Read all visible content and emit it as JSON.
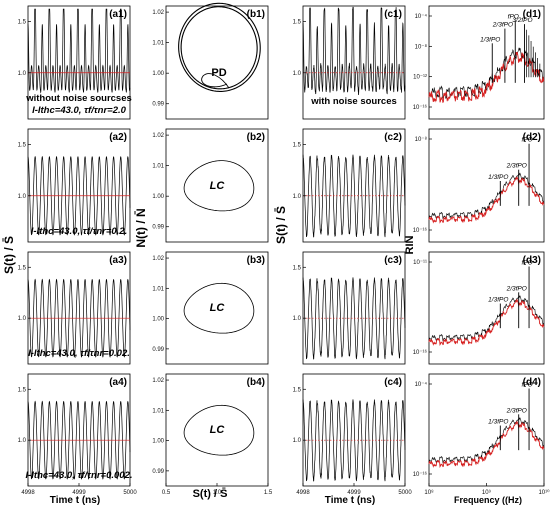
{
  "chart_data": [
    {
      "id": "a1",
      "type": "line",
      "panel_label": "(a1)",
      "x_ticks": [
        "4998",
        "4999",
        "5000"
      ],
      "y_ticks": [
        "1.0",
        "1.5"
      ],
      "ylim": [
        0.55,
        1.65
      ],
      "series": [
        {
          "color": "#000000",
          "description": "black oscillating trace, multi-peak"
        },
        {
          "color": "#d62020",
          "description": "red mean line near 1.0"
        }
      ],
      "annotations": [
        "without noise sourcses",
        "I-Ithc=43.0,  τf/τnr=2.0"
      ]
    },
    {
      "id": "a2",
      "type": "line",
      "panel_label": "(a2)",
      "y_ticks": [
        "1.0",
        "1.5"
      ],
      "ylim": [
        0.55,
        1.65
      ],
      "annotations": [
        "I-Ithc=43.0,  τf/τnr=0.2."
      ]
    },
    {
      "id": "a3",
      "type": "line",
      "panel_label": "(a3)",
      "y_ticks": [
        "1.0",
        "1.5"
      ],
      "ylim": [
        0.55,
        1.65
      ],
      "annotations": [
        "I-Ithc=43.0,  τf/τnr=0.02."
      ]
    },
    {
      "id": "a4",
      "type": "line",
      "panel_label": "(a4)",
      "x_ticks": [
        "4998",
        "4999",
        "5000"
      ],
      "y_ticks": [
        "1.0",
        "1.5"
      ],
      "ylim": [
        0.55,
        1.65
      ],
      "annotations": [
        "I-Ithc=43.0,  τf/τnr=0.002."
      ]
    },
    {
      "id": "b1",
      "type": "line",
      "panel_label": "(b1)",
      "y_ticks": [
        "0.99",
        "1.00",
        "1.01",
        "1.02"
      ],
      "ylim": [
        0.985,
        1.022
      ],
      "inner_label": "PD"
    },
    {
      "id": "b2",
      "type": "line",
      "panel_label": "(b2)",
      "y_ticks": [
        "0.99",
        "1.00",
        "1.01",
        "1.02"
      ],
      "ylim": [
        0.985,
        1.022
      ],
      "inner_label": "LC"
    },
    {
      "id": "b3",
      "type": "line",
      "panel_label": "(b3)",
      "y_ticks": [
        "0.99",
        "1.00",
        "1.01",
        "1.02"
      ],
      "ylim": [
        0.985,
        1.022
      ],
      "inner_label": "LC"
    },
    {
      "id": "b4",
      "type": "line",
      "panel_label": "(b4)",
      "x_ticks": [
        "0.5",
        "1.0",
        "1.5"
      ],
      "y_ticks": [
        "0.99",
        "1.00",
        "1.01",
        "1.02"
      ],
      "ylim": [
        0.985,
        1.022
      ],
      "inner_label": "LC"
    },
    {
      "id": "c1",
      "type": "line",
      "panel_label": "(c1)",
      "y_ticks": [
        "1.0",
        "1.5"
      ],
      "annotations": [
        "with noise sources"
      ]
    },
    {
      "id": "c2",
      "type": "line",
      "panel_label": "(c2)",
      "y_ticks": [
        "1.0",
        "1.5"
      ]
    },
    {
      "id": "c3",
      "type": "line",
      "panel_label": "(c3)",
      "y_ticks": [
        "1.0",
        "1.5"
      ]
    },
    {
      "id": "c4",
      "type": "line",
      "panel_label": "(c4)",
      "x_ticks": [
        "4998",
        "4999",
        "5000"
      ],
      "y_ticks": [
        "1.0",
        "1.5"
      ]
    },
    {
      "id": "d1",
      "type": "line",
      "panel_label": "(d1)",
      "y_ticks": [
        "10⁻⁴",
        "10⁻⁸",
        "10⁻¹²",
        "10⁻¹⁶"
      ],
      "peaks": [
        "1/3fPO",
        "2/3fPO",
        "fPO",
        "3/2fPO"
      ]
    },
    {
      "id": "d2",
      "type": "line",
      "panel_label": "(d2)",
      "y_ticks": [
        "10⁻⁸",
        "10⁻¹⁶"
      ],
      "peaks": [
        "1/3fPO",
        "2/3fPO",
        "fPO"
      ]
    },
    {
      "id": "d3",
      "type": "line",
      "panel_label": "(d3)",
      "y_ticks": [
        "10⁻¹¹",
        "10⁻¹⁶"
      ],
      "peaks": [
        "1/3fPO",
        "2/3fPO",
        "fPO"
      ]
    },
    {
      "id": "d4",
      "type": "line",
      "panel_label": "(d4)",
      "x_ticks": [
        "10⁸",
        "10⁹",
        "10¹⁰"
      ],
      "y_ticks": [
        "10⁻⁴",
        "10⁻¹⁶"
      ],
      "peaks": [
        "1/3fPO",
        "2/3fPO",
        "fPO"
      ]
    }
  ],
  "labels": {
    "col_a_ylabel": "S(t) / S̄",
    "col_b_ylabel": "N(t) / N̄",
    "col_c_ylabel": "S(t) / S̄",
    "col_d_ylabel": "RIN",
    "xlabel_a": "Time t (ns)",
    "xlabel_b": "S(t) / S̄",
    "xlabel_c": "Time t (ns)",
    "xlabel_d": "Frequency ((Hz)"
  },
  "colors": {
    "trace": "#000000",
    "mean": "#d62020",
    "noise": "#d62020"
  }
}
